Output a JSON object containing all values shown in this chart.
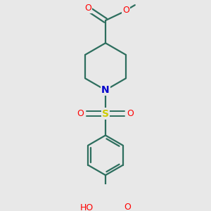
{
  "bg_color": "#e8e8e8",
  "bond_color": "#2d6e5e",
  "bond_width": 1.6,
  "N_color": "#0000cc",
  "S_color": "#cccc00",
  "O_color": "#ff0000",
  "fig_size": [
    3.0,
    3.0
  ],
  "dpi": 100,
  "xlim": [
    -1.3,
    1.3
  ],
  "ylim": [
    -1.55,
    2.5
  ]
}
